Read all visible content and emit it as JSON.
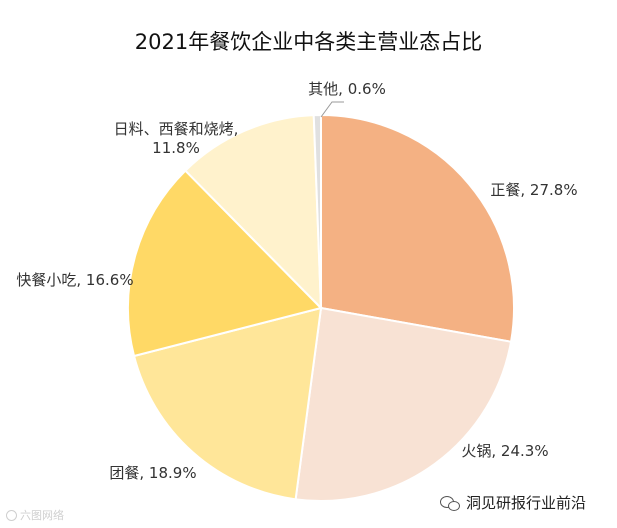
{
  "chart_data": {
    "type": "pie",
    "title": "2021年餐饮企业中各类主营业态占比",
    "slices": [
      {
        "label": "正餐",
        "value": 27.8,
        "display": "正餐, 27.8%",
        "color": "#F4B183"
      },
      {
        "label": "火锅",
        "value": 24.3,
        "display": "火锅, 24.3%",
        "color": "#F8E2D4"
      },
      {
        "label": "团餐",
        "value": 18.9,
        "display": "团餐, 18.9%",
        "color": "#FFE699"
      },
      {
        "label": "快餐小吃",
        "value": 16.6,
        "display": "快餐小吃, 16.6%",
        "color": "#FFD966"
      },
      {
        "label": "日料、西餐和烧烤",
        "value": 11.8,
        "display_lines": [
          "日料、西餐和烧烤,",
          "11.8%"
        ],
        "color": "#FFF2CC"
      },
      {
        "label": "其他",
        "value": 0.6,
        "display": "其他, 0.6%",
        "color": "#E0E0E0"
      }
    ],
    "start_angle_deg": 0,
    "direction": "clockwise",
    "legend": "none"
  },
  "watermarks": {
    "left": "六图网络",
    "right": "洞见研报行业前沿"
  }
}
